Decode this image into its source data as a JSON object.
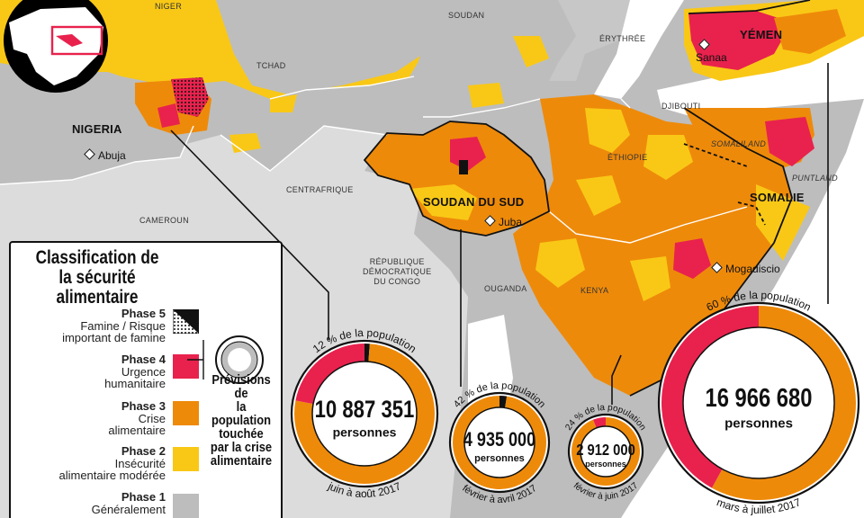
{
  "countries": {
    "niger": "NIGER",
    "tchad": "TCHAD",
    "soudan": "SOUDAN",
    "erythree": "ÉRYTHRÉE",
    "djibouti": "DJIBOUTI",
    "ethiopie": "ÉTHIOPIE",
    "centrafrique": "CENTRAFRIQUE",
    "cameroun": "CAMEROUN",
    "rdc": [
      "RÉPUBLIQUE",
      "DÉMOCRATIQUE",
      "DU CONGO"
    ],
    "ouganda": "OUGANDA",
    "kenya": "KENYA",
    "somaliland": "SOMALILAND",
    "puntland": "PUNTLAND"
  },
  "focus_countries": {
    "nigeria": "NIGERIA",
    "soudan_du_sud": "SOUDAN DU SUD",
    "somalie": "SOMALIE",
    "yemen": "YÉMEN"
  },
  "cities": {
    "abuja": "Abuja",
    "juba": "Juba",
    "mogadiscio": "Mogadiscio",
    "sanaa": "Sanaa"
  },
  "legend": {
    "title": [
      "Classification de",
      "la sécurité alimentaire"
    ],
    "phases": [
      {
        "phase": "Phase 5",
        "desc": [
          "Famine / Risque",
          "important de famine"
        ],
        "color": "#111111"
      },
      {
        "phase": "Phase 4",
        "desc": [
          "Urgence",
          "humanitaire"
        ],
        "color": "#e8224d"
      },
      {
        "phase": "Phase 3",
        "desc": [
          "Crise",
          "alimentaire"
        ],
        "color": "#ee8a0a"
      },
      {
        "phase": "Phase 2",
        "desc": [
          "Insécurité",
          "alimentaire modérée"
        ],
        "color": "#f9c816"
      },
      {
        "phase": "Phase 1",
        "desc": [
          "Généralement",
          ""
        ],
        "color": "#bdbdbd"
      }
    ],
    "forecast_label": [
      "Prévisions de",
      "la population",
      "touchée",
      "par la crise",
      "alimentaire"
    ]
  },
  "donuts": [
    {
      "id": "nigeria",
      "pct_label": "12 % de la population",
      "count": "10 887 351",
      "unit": "personnes",
      "period": "juin à août 2017",
      "phase5_share": 0.012,
      "phase4_share": 0.22,
      "phase3_share": 0.768
    },
    {
      "id": "soudan-du-sud",
      "pct_label": "42 % de la population",
      "count": "4 935 000",
      "unit": "personnes",
      "period": "février à avril 2017",
      "phase5_share": 0.025,
      "phase4_share": 0.0,
      "phase3_share": 0.975
    },
    {
      "id": "kenya",
      "pct_label": "24 % de la population",
      "count": "2 912 000",
      "unit": "personnes",
      "period": "février à juin 2017",
      "phase5_share": 0.0,
      "phase4_share": 0.06,
      "phase3_share": 0.94
    },
    {
      "id": "yemen",
      "pct_label": "60 % de la population",
      "count": "16 966 680",
      "unit": "personnes",
      "period": "mars à juillet 2017",
      "phase5_share": 0.0,
      "phase4_share": 0.42,
      "phase3_share": 0.58
    }
  ],
  "colors": {
    "phase5": "#111111",
    "phase4": "#e8224d",
    "phase3": "#ee8a0a",
    "phase2": "#f9c816",
    "phase1": "#bdbdbd",
    "sea": "#ffffff"
  }
}
